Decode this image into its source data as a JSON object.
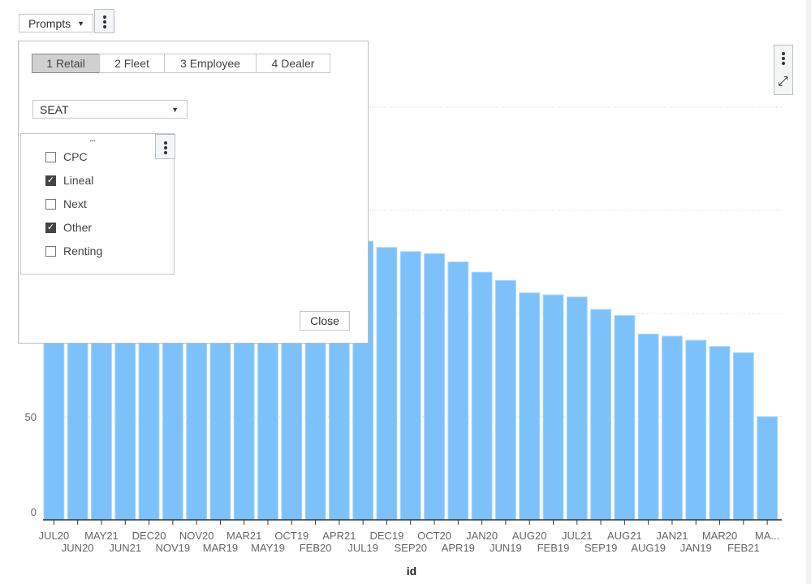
{
  "toolbar": {
    "prompts_label": "Prompts",
    "prompts_caret": "▼"
  },
  "prompts_panel": {
    "tabs": [
      {
        "label": "1 Retail",
        "active": true
      },
      {
        "label": "2 Fleet",
        "active": false
      },
      {
        "label": "3 Employee",
        "active": false
      },
      {
        "label": "4 Dealer",
        "active": false
      }
    ],
    "brand_select": {
      "value": "SEAT",
      "caret": "▼"
    },
    "checklist": {
      "drag_handle": "....",
      "items": [
        {
          "label": "CPC",
          "checked": false
        },
        {
          "label": "Lineal",
          "checked": true
        },
        {
          "label": "Next",
          "checked": false
        },
        {
          "label": "Other",
          "checked": true
        },
        {
          "label": "Renting",
          "checked": false
        }
      ],
      "check_glyph": "✓"
    },
    "close_label": "Close"
  },
  "chart_tools": {
    "expand_icon": "⤢"
  },
  "chart_data": {
    "type": "bar",
    "xlabel": "id",
    "ylabel": "",
    "ylim": [
      0,
      200
    ],
    "yticks": [
      0,
      50
    ],
    "gridlines": [
      50,
      100,
      150,
      200
    ],
    "grid": true,
    "bar_color": "#7cc1fa",
    "categories": [
      "JUL20",
      "JUN20",
      "MAY21",
      "JUN21",
      "DEC20",
      "NOV19",
      "NOV20",
      "MAR19",
      "MAR21",
      "MAY19",
      "OCT19",
      "FEB20",
      "APR21",
      "JUL19",
      "DEC19",
      "SEP20",
      "OCT20",
      "APR19",
      "JAN20",
      "JUN19",
      "AUG20",
      "FEB19",
      "JUL21",
      "SEP19",
      "AUG21",
      "AUG19",
      "JAN21",
      "JAN19",
      "MAR20",
      "FEB21",
      "MA..."
    ],
    "values": [
      190,
      180,
      172,
      166,
      161,
      157,
      153,
      150,
      147,
      144,
      141,
      139,
      137,
      135,
      132,
      130,
      129,
      125,
      120,
      116,
      110,
      109,
      108,
      102,
      99,
      90,
      89,
      87,
      84,
      81,
      50
    ]
  }
}
